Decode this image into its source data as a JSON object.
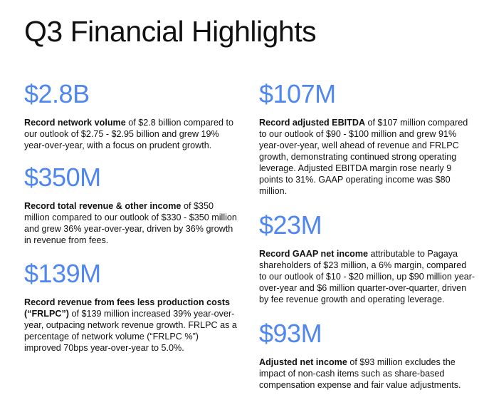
{
  "title": "Q3 Financial Highlights",
  "colors": {
    "accent": "#4f86f0",
    "text": "#111111",
    "background": "#ffffff"
  },
  "highlights": [
    {
      "metric": "$2.8B",
      "bold": "Record network volume",
      "text": " of $2.8 billion compared to our outlook of $2.75 - $2.95 billion and grew 19% year-over-year, with a focus on prudent growth."
    },
    {
      "metric": "$350M",
      "bold": "Record total revenue & other income",
      "text": " of $350 million compared to our outlook of $330 - $350 million and grew 36% year-over-year, driven by 36% growth in revenue from fees."
    },
    {
      "metric": "$139M",
      "bold": "Record revenue from fees less production costs (“FRLPC”)",
      "text": " of $139 million increased 39% year-over-year, outpacing network revenue growth. FRLPC as a percentage of network volume (“FRLPC %”) improved 70bps year-over-year to 5.0%."
    },
    {
      "metric": "$107M",
      "bold": "Record adjusted EBITDA",
      "text": " of $107 million compared to our outlook of $90 - $100 million and grew 91% year-over-year, well ahead of revenue and FRLPC growth, demonstrating continued strong operating leverage. Adjusted EBITDA margin rose nearly 9 points to 31%. GAAP operating income was $80 million."
    },
    {
      "metric": "$23M",
      "bold": "Record GAAP net income",
      "text": " attributable to Pagaya shareholders of $23 million, a 6% margin, compared to our outlook of $10 - $20 million, up $90 million year-over-year and $6 million quarter-over-quarter, driven by fee revenue growth and operating leverage."
    },
    {
      "metric": "$93M",
      "bold": "Adjusted net income",
      "text": " of $93 million excludes the impact of non-cash items such as share-based compensation expense and fair value adjustments."
    }
  ]
}
